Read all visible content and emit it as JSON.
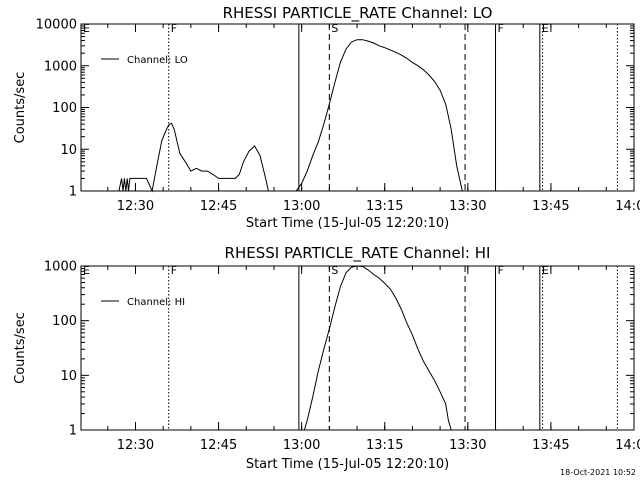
{
  "chart_data": [
    {
      "type": "line",
      "title": "RHESSI PARTICLE_RATE Channel: LO",
      "xlabel": "Start Time (15-Jul-05 12:20:10)",
      "ylabel": "Counts/sec",
      "xlim": [
        "12:20:10",
        "14:00"
      ],
      "ylim": [
        1,
        10000
      ],
      "yscale": "log",
      "grid": false,
      "legend_position": "top-left",
      "x_ticks": [
        "12:30",
        "12:45",
        "13:00",
        "13:15",
        "13:30",
        "13:45",
        "14:00"
      ],
      "y_ticks": [
        "1",
        "10",
        "100",
        "1000",
        "10000"
      ],
      "series": [
        {
          "name": "Channel: LO",
          "color": "#000000",
          "x": [
            "12:27:00",
            "12:27:30",
            "12:27:45",
            "12:28:00",
            "12:28:15",
            "12:28:30",
            "12:28:45",
            "12:29:00",
            "12:30:00",
            "12:30:30",
            "12:31:00",
            "12:32:00",
            "12:33:00",
            "12:34:00",
            "12:34:45",
            "12:35:30",
            "12:36:00",
            "12:36:30",
            "12:37:00",
            "12:38:00",
            "12:39:00",
            "12:40:00",
            "12:41:00",
            "12:42:00",
            "12:43:00",
            "12:44:00",
            "12:45:00",
            "12:46:00",
            "12:47:00",
            "12:48:00",
            "12:48:45",
            "12:49:30",
            "12:50:30",
            "12:51:30",
            "12:52:30",
            "12:53:30",
            "12:54:00",
            "12:59:00",
            "13:00:00",
            "13:01:00",
            "13:02:00",
            "13:03:00",
            "13:04:00",
            "13:05:00",
            "13:06:00",
            "13:07:00",
            "13:08:00",
            "13:09:00",
            "13:10:00",
            "13:11:00",
            "13:12:00",
            "13:13:00",
            "13:14:00",
            "13:15:00",
            "13:16:00",
            "13:17:00",
            "13:18:00",
            "13:19:00",
            "13:20:00",
            "13:21:00",
            "13:22:00",
            "13:23:00",
            "13:24:00",
            "13:25:00",
            "13:26:00",
            "13:27:00",
            "13:28:00",
            "13:29:00"
          ],
          "values": [
            1,
            2,
            1,
            2,
            1,
            2,
            1,
            2,
            2,
            2,
            2,
            2,
            1,
            5,
            16,
            28,
            38,
            42,
            30,
            8,
            5,
            3,
            3.5,
            3,
            3,
            2.5,
            2,
            2,
            2,
            2,
            2.5,
            5,
            9,
            12,
            7,
            2,
            1,
            1,
            1.5,
            3,
            7,
            15,
            40,
            120,
            400,
            1200,
            2500,
            3700,
            4200,
            4200,
            3900,
            3500,
            3000,
            2700,
            2400,
            2100,
            1800,
            1500,
            1200,
            1000,
            800,
            600,
            420,
            260,
            120,
            30,
            4,
            1
          ]
        }
      ],
      "markers": [
        {
          "label": "E",
          "x": "12:20:10",
          "style": "solid"
        },
        {
          "label": "F",
          "x": "12:36:00",
          "style": "dotted"
        },
        {
          "label": "",
          "x": "12:59:30",
          "style": "solid"
        },
        {
          "label": "S",
          "x": "13:05:00",
          "style": "dashed"
        },
        {
          "label": "",
          "x": "13:29:30",
          "style": "dashed"
        },
        {
          "label": "F",
          "x": "13:35:00",
          "style": "solid"
        },
        {
          "label": "E",
          "x": "13:43:00",
          "style": "solid"
        },
        {
          "label": "",
          "x": "13:43:30",
          "style": "dotted"
        },
        {
          "label": "",
          "x": "13:57:00",
          "style": "dotted"
        }
      ]
    },
    {
      "type": "line",
      "title": "RHESSI PARTICLE_RATE Channel: HI",
      "xlabel": "Start Time (15-Jul-05 12:20:10)",
      "ylabel": "Counts/sec",
      "xlim": [
        "12:20:10",
        "14:00"
      ],
      "ylim": [
        1,
        1000
      ],
      "yscale": "log",
      "grid": false,
      "legend_position": "top-left",
      "x_ticks": [
        "12:30",
        "12:45",
        "13:00",
        "13:15",
        "13:30",
        "13:45",
        "14:00"
      ],
      "y_ticks": [
        "1",
        "10",
        "100",
        "1000"
      ],
      "series": [
        {
          "name": "Channel: HI",
          "color": "#000000",
          "x": [
            "13:00:30",
            "13:01:00",
            "13:02:00",
            "13:03:00",
            "13:04:00",
            "13:05:00",
            "13:06:00",
            "13:07:00",
            "13:08:00",
            "13:09:00",
            "13:10:00",
            "13:11:00",
            "13:12:00",
            "13:13:00",
            "13:14:00",
            "13:15:00",
            "13:16:00",
            "13:17:00",
            "13:18:00",
            "13:19:00",
            "13:20:00",
            "13:21:00",
            "13:22:00",
            "13:23:00",
            "13:24:00",
            "13:25:00",
            "13:26:00",
            "13:26:30",
            "13:27:00"
          ],
          "values": [
            1,
            1.5,
            4,
            12,
            30,
            70,
            180,
            420,
            750,
            950,
            1000,
            980,
            850,
            700,
            600,
            480,
            380,
            260,
            160,
            90,
            55,
            30,
            18,
            12,
            8,
            5,
            3,
            1.5,
            1
          ]
        }
      ],
      "markers": [
        {
          "label": "E",
          "x": "12:20:10",
          "style": "solid"
        },
        {
          "label": "F",
          "x": "12:36:00",
          "style": "dotted"
        },
        {
          "label": "",
          "x": "12:59:30",
          "style": "solid"
        },
        {
          "label": "S",
          "x": "13:05:00",
          "style": "dashed"
        },
        {
          "label": "",
          "x": "13:29:30",
          "style": "dashed"
        },
        {
          "label": "F",
          "x": "13:35:00",
          "style": "solid"
        },
        {
          "label": "E",
          "x": "13:43:00",
          "style": "solid"
        },
        {
          "label": "",
          "x": "13:43:30",
          "style": "dotted"
        },
        {
          "label": "",
          "x": "13:57:00",
          "style": "dotted"
        }
      ]
    }
  ],
  "footer": {
    "timestamp": "18-Oct-2021 10:52"
  }
}
